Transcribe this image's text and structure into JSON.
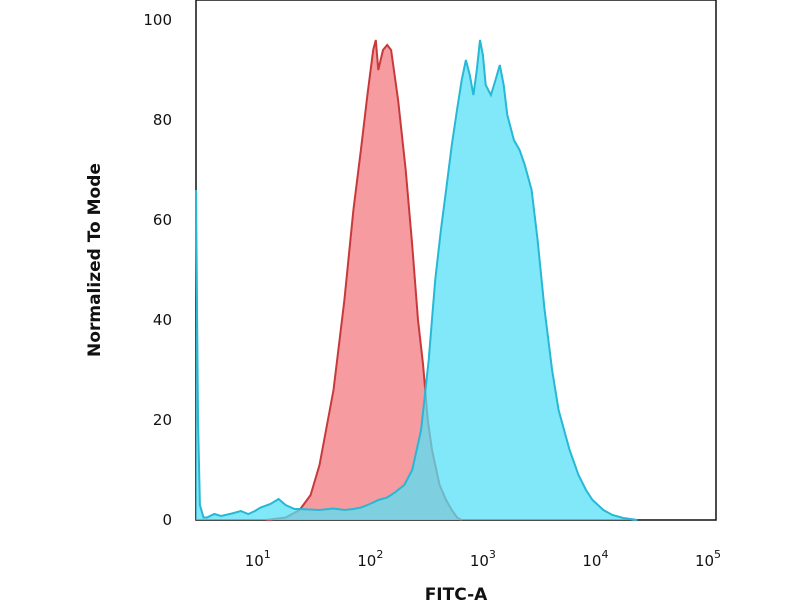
{
  "chart_data": {
    "type": "area",
    "xlabel": "FITC-A",
    "ylabel": "Normalized To Mode",
    "x_scale": "log",
    "xlim": [
      2.4,
      100000
    ],
    "ylim": [
      0,
      100
    ],
    "x_ticks": [
      {
        "value": 10,
        "base": "10",
        "exp": "1"
      },
      {
        "value": 100,
        "base": "10",
        "exp": "2"
      },
      {
        "value": 1000,
        "base": "10",
        "exp": "3"
      },
      {
        "value": 10000,
        "base": "10",
        "exp": "4"
      },
      {
        "value": 100000,
        "base": "10",
        "exp": "5"
      }
    ],
    "y_ticks": [
      0,
      20,
      40,
      60,
      80,
      100
    ],
    "grid": false,
    "series": [
      {
        "fill": "#f58a8e",
        "line": "#c83a3a",
        "fill_opacity": 0.85,
        "points": [
          [
            10,
            0
          ],
          [
            15,
            0.5
          ],
          [
            20,
            2
          ],
          [
            25,
            5
          ],
          [
            30,
            11
          ],
          [
            40,
            26
          ],
          [
            50,
            44
          ],
          [
            60,
            62
          ],
          [
            70,
            74
          ],
          [
            80,
            85
          ],
          [
            90,
            94
          ],
          [
            95,
            96
          ],
          [
            100,
            90
          ],
          [
            110,
            94
          ],
          [
            120,
            95
          ],
          [
            130,
            94
          ],
          [
            150,
            84
          ],
          [
            175,
            70
          ],
          [
            200,
            55
          ],
          [
            225,
            40
          ],
          [
            250,
            31
          ],
          [
            275,
            20
          ],
          [
            300,
            14
          ],
          [
            350,
            7
          ],
          [
            400,
            4
          ],
          [
            450,
            2
          ],
          [
            500,
            0.5
          ],
          [
            550,
            0
          ]
        ]
      },
      {
        "fill": "#55e0f5",
        "line": "#26b8d4",
        "fill_opacity": 0.75,
        "points": [
          [
            2.4,
            66
          ],
          [
            2.5,
            20
          ],
          [
            2.6,
            3
          ],
          [
            2.8,
            0.5
          ],
          [
            3,
            0.5
          ],
          [
            3.5,
            1.2
          ],
          [
            4,
            0.8
          ],
          [
            5,
            1.3
          ],
          [
            6,
            1.8
          ],
          [
            7,
            1.2
          ],
          [
            8,
            1.8
          ],
          [
            9,
            2.5
          ],
          [
            11,
            3.2
          ],
          [
            13,
            4.2
          ],
          [
            15,
            3
          ],
          [
            18,
            2.2
          ],
          [
            20,
            2.2
          ],
          [
            30,
            2
          ],
          [
            40,
            2.3
          ],
          [
            50,
            2
          ],
          [
            60,
            2.2
          ],
          [
            70,
            2.5
          ],
          [
            80,
            3
          ],
          [
            90,
            3.5
          ],
          [
            100,
            4
          ],
          [
            120,
            4.5
          ],
          [
            140,
            5.5
          ],
          [
            170,
            7
          ],
          [
            200,
            10
          ],
          [
            240,
            18
          ],
          [
            280,
            32
          ],
          [
            320,
            48
          ],
          [
            360,
            58
          ],
          [
            400,
            66
          ],
          [
            450,
            75
          ],
          [
            500,
            82
          ],
          [
            550,
            88
          ],
          [
            600,
            92
          ],
          [
            650,
            89
          ],
          [
            700,
            85
          ],
          [
            750,
            90
          ],
          [
            800,
            96
          ],
          [
            850,
            93
          ],
          [
            900,
            87
          ],
          [
            1000,
            85
          ],
          [
            1100,
            88
          ],
          [
            1200,
            91
          ],
          [
            1300,
            87
          ],
          [
            1400,
            81
          ],
          [
            1600,
            76
          ],
          [
            1800,
            74
          ],
          [
            2000,
            71
          ],
          [
            2300,
            66
          ],
          [
            2600,
            56
          ],
          [
            3000,
            42
          ],
          [
            3500,
            30
          ],
          [
            4000,
            22
          ],
          [
            5000,
            14
          ],
          [
            6000,
            9
          ],
          [
            7000,
            6
          ],
          [
            8000,
            4
          ],
          [
            10000,
            2
          ],
          [
            12000,
            1
          ],
          [
            15000,
            0.4
          ],
          [
            20000,
            0
          ]
        ]
      }
    ]
  }
}
